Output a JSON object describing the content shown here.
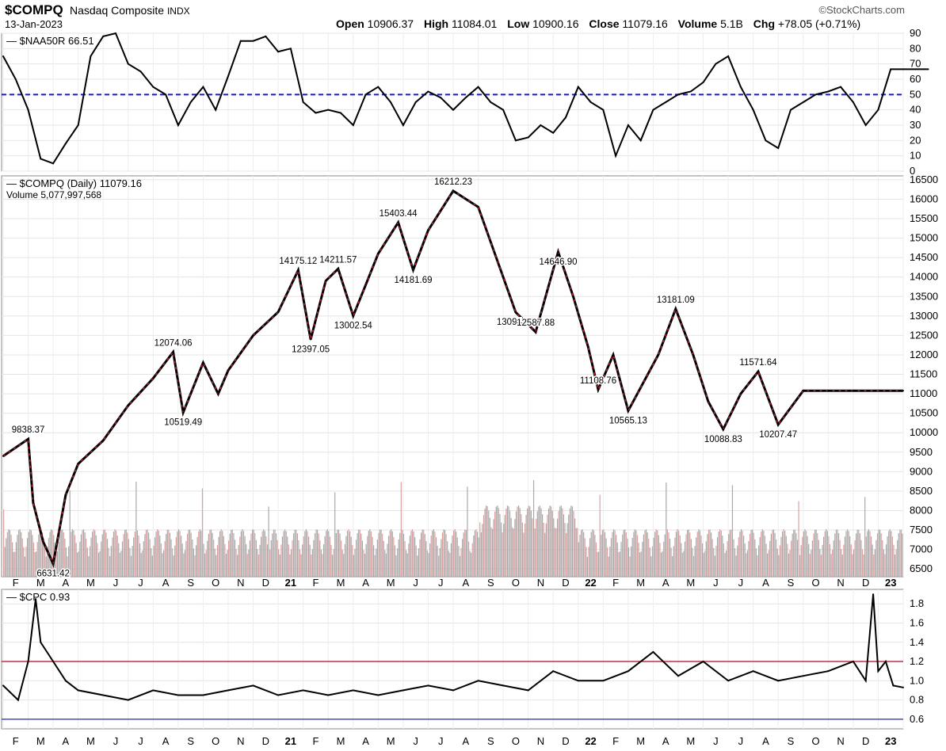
{
  "header": {
    "symbol": "$COMPQ",
    "name": "Nasdaq Composite",
    "exchange": "INDX",
    "date": "13-Jan-2023",
    "brand": "©StockCharts.com",
    "open_label": "Open",
    "open": "10906.37",
    "high_label": "High",
    "high": "11084.01",
    "low_label": "Low",
    "low": "10900.16",
    "close_label": "Close",
    "close": "11079.16",
    "volume_label": "Volume",
    "volume": "5.1B",
    "chg_label": "Chg",
    "chg": "+78.05 (+0.71%)"
  },
  "colors": {
    "up": "#000000",
    "down": "#b22234",
    "reference_line_blue": "#1a1acc",
    "cpc_upper_line": "#c0304a",
    "cpc_lower_line": "#4a4acc",
    "volume_up": "#a9a9a9",
    "volume_down": "#e0a0a0"
  },
  "chart_data": [
    {
      "type": "line",
      "title": "$NAA50R 66.51",
      "legend": "top-left",
      "grid": true,
      "ylim": [
        0,
        90
      ],
      "yticks": [
        0,
        10,
        20,
        30,
        40,
        50,
        60,
        70,
        80,
        90
      ],
      "reference_line": 50,
      "x": [
        0,
        0.5,
        1,
        1.5,
        2,
        2.5,
        3,
        3.5,
        4,
        4.5,
        5,
        5.5,
        6,
        6.5,
        7,
        7.5,
        8,
        8.5,
        9,
        9.5,
        10,
        10.5,
        11,
        11.5,
        12,
        12.5,
        13,
        13.5,
        14,
        14.5,
        15,
        15.5,
        16,
        16.5,
        17,
        17.5,
        18,
        18.5,
        19,
        19.5,
        20,
        20.5,
        21,
        21.5,
        22,
        22.5,
        23,
        23.5,
        24,
        24.5,
        25,
        25.5,
        26,
        26.5,
        27,
        27.5,
        28,
        28.5,
        29,
        29.5,
        30,
        30.5,
        31,
        31.5,
        32,
        32.5,
        33,
        33.5,
        34,
        34.5,
        35,
        35.5,
        36,
        36.5,
        37
      ],
      "values": [
        75,
        60,
        40,
        8,
        5,
        18,
        30,
        75,
        88,
        90,
        70,
        65,
        55,
        50,
        30,
        45,
        55,
        40,
        62,
        85,
        85,
        88,
        78,
        80,
        45,
        38,
        40,
        38,
        30,
        50,
        55,
        45,
        30,
        45,
        52,
        48,
        40,
        48,
        55,
        45,
        40,
        20,
        22,
        30,
        25,
        35,
        55,
        45,
        40,
        10,
        30,
        20,
        40,
        45,
        50,
        52,
        58,
        70,
        75,
        55,
        40,
        20,
        15,
        40,
        45,
        50,
        52,
        55,
        45,
        30,
        40,
        66.51,
        66.51,
        66.51,
        66.51
      ],
      "x_note": "monthly ticks from Feb 2020 to Jan 2023"
    },
    {
      "type": "line",
      "title": "$COMPQ (Daily) 11079.16",
      "subtitle": "Volume 5,077,997,568",
      "ylim": [
        6300,
        16600
      ],
      "yticks": [
        6500,
        7000,
        7500,
        8000,
        8500,
        9000,
        9500,
        10000,
        10500,
        11000,
        11500,
        12000,
        12500,
        13000,
        13500,
        14000,
        14500,
        15000,
        15500,
        16000,
        16500
      ],
      "x": [
        0,
        1,
        1.2,
        1.6,
        2.0,
        2.5,
        3,
        4,
        5,
        6,
        6.8,
        7.2,
        8,
        8.6,
        9,
        10,
        11,
        11.8,
        12.3,
        12.9,
        13.4,
        14,
        14.5,
        15,
        15.8,
        16.4,
        17,
        18,
        19,
        20.5,
        21.3,
        22.2,
        22.8,
        23.4,
        23.8,
        24.4,
        25,
        26.2,
        26.9,
        27.6,
        28.2,
        28.8,
        29.5,
        30.2,
        31,
        32,
        33,
        34,
        34.9,
        35.4,
        36
      ],
      "values": [
        9400,
        9838.37,
        8200,
        7200,
        6631.42,
        8400,
        9200,
        9800,
        10700,
        11400,
        12074.06,
        10519.49,
        11800,
        11000,
        11600,
        12500,
        13100,
        14175.12,
        12397.05,
        13900,
        14211.57,
        13002.54,
        13800,
        14600,
        15403.44,
        14181.69,
        15200,
        16212.23,
        15800,
        13094.65,
        12587.88,
        14646.9,
        13500,
        12200,
        11108.76,
        12000,
        10565.13,
        12000,
        13181.09,
        12000,
        10800,
        10088.83,
        11000,
        11571.64,
        10207.47,
        11079.16,
        11079.16,
        11079.16,
        11079.16,
        11079.16,
        11079.16
      ],
      "annotations": [
        {
          "label": "9838.37",
          "value": 9838.37
        },
        {
          "label": "6631.42",
          "value": 6631.42
        },
        {
          "label": "12074.06",
          "value": 12074.06
        },
        {
          "label": "10519.49",
          "value": 10519.49
        },
        {
          "label": "14175.12",
          "value": 14175.12
        },
        {
          "label": "12397.05",
          "value": 12397.05
        },
        {
          "label": "14211.57",
          "value": 14211.57
        },
        {
          "label": "13002.54",
          "value": 13002.54
        },
        {
          "label": "15403.44",
          "value": 15403.44
        },
        {
          "label": "14181.69",
          "value": 14181.69
        },
        {
          "label": "16212.23",
          "value": 16212.23
        },
        {
          "label": "13094.65",
          "value": 13094.65
        },
        {
          "label": "12587.88",
          "value": 12587.88
        },
        {
          "label": "14646.90",
          "value": 14646.9
        },
        {
          "label": "11108.76",
          "value": 11108.76
        },
        {
          "label": "10565.13",
          "value": 10565.13
        },
        {
          "label": "13181.09",
          "value": 13181.09
        },
        {
          "label": "10088.83",
          "value": 10088.83
        },
        {
          "label": "11571.64",
          "value": 11571.64
        },
        {
          "label": "10207.47",
          "value": 10207.47
        }
      ],
      "x_tick_labels": [
        "F",
        "M",
        "A",
        "M",
        "J",
        "J",
        "A",
        "S",
        "O",
        "N",
        "D",
        "21",
        "F",
        "M",
        "A",
        "M",
        "J",
        "J",
        "A",
        "S",
        "O",
        "N",
        "D",
        "22",
        "F",
        "M",
        "A",
        "M",
        "J",
        "J",
        "A",
        "S",
        "O",
        "N",
        "D",
        "23"
      ]
    },
    {
      "type": "line",
      "title": "$CPC 0.93",
      "ylim": [
        0.5,
        1.95
      ],
      "yticks": [
        0.6,
        0.8,
        1.0,
        1.2,
        1.4,
        1.6,
        1.8
      ],
      "ytick_labels": [
        "0.6",
        "0.8",
        "1.0",
        "1.2",
        "1.4",
        "1.6",
        "1.8"
      ],
      "reference_lines": [
        1.2,
        0.6
      ],
      "x": [
        0,
        0.6,
        1.0,
        1.3,
        1.5,
        2.0,
        2.5,
        3,
        4,
        5,
        6,
        7,
        8,
        9,
        10,
        11,
        12,
        13,
        14,
        15,
        16,
        17,
        18,
        19,
        20,
        21,
        22,
        23,
        24,
        25,
        26,
        27,
        28,
        29,
        30,
        31,
        32,
        33,
        34,
        34.5,
        34.8,
        35,
        35.3,
        35.6,
        36
      ],
      "values": [
        0.95,
        0.8,
        1.2,
        1.85,
        1.4,
        1.2,
        1.0,
        0.9,
        0.85,
        0.8,
        0.9,
        0.85,
        0.85,
        0.9,
        0.95,
        0.85,
        0.9,
        0.85,
        0.9,
        0.85,
        0.9,
        0.95,
        0.9,
        1.0,
        0.95,
        0.9,
        1.1,
        1.0,
        1.0,
        1.1,
        1.3,
        1.05,
        1.2,
        1.0,
        1.1,
        1.0,
        1.05,
        1.1,
        1.2,
        1.0,
        1.9,
        1.1,
        1.2,
        0.95,
        0.93
      ],
      "x_tick_labels": [
        "F",
        "M",
        "A",
        "M",
        "J",
        "J",
        "A",
        "S",
        "O",
        "N",
        "D",
        "21",
        "F",
        "M",
        "A",
        "M",
        "J",
        "J",
        "A",
        "S",
        "O",
        "N",
        "D",
        "22",
        "F",
        "M",
        "A",
        "M",
        "J",
        "J",
        "A",
        "S",
        "O",
        "N",
        "D",
        "23"
      ]
    }
  ]
}
